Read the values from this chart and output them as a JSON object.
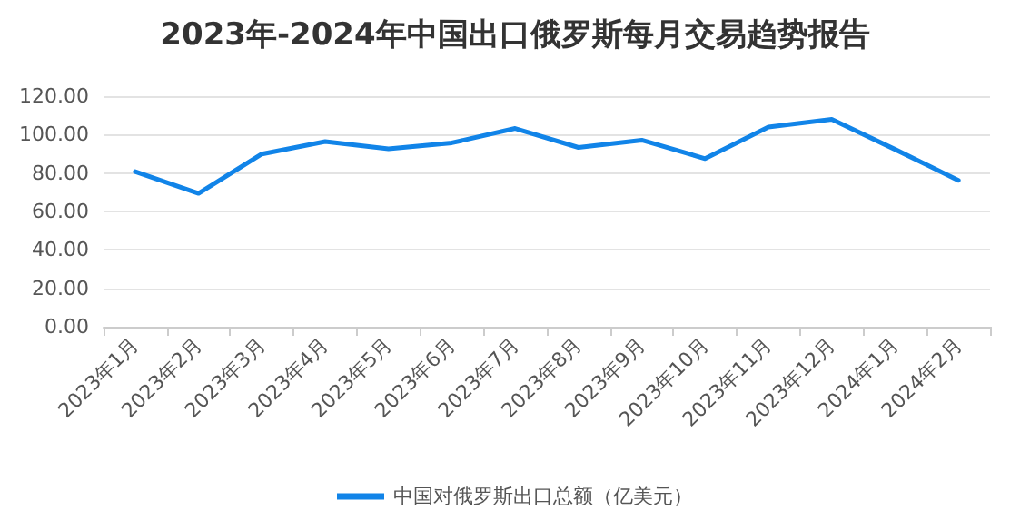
{
  "chart_data": {
    "type": "line",
    "title": "2023年-2024年中国出口俄罗斯每月交易趋势报告",
    "categories": [
      "2023年1月",
      "2023年2月",
      "2023年3月",
      "2023年4月",
      "2023年5月",
      "2023年6月",
      "2023年7月",
      "2023年8月",
      "2023年9月",
      "2023年10月",
      "2023年11月",
      "2023年12月",
      "2024年1月",
      "2024年2月"
    ],
    "series": [
      {
        "name": "中国对俄罗斯出口总额（亿美元）",
        "color": "#1184e8",
        "values": [
          80.7,
          69.4,
          89.9,
          96.4,
          92.6,
          95.7,
          103.2,
          93.3,
          97.1,
          87.5,
          103.9,
          108.0,
          92.3,
          76.2
        ]
      }
    ],
    "ylim": [
      0,
      120
    ],
    "yticks": [
      {
        "value": 0,
        "label": "0.00"
      },
      {
        "value": 20,
        "label": "20.00"
      },
      {
        "value": 40,
        "label": "40.00"
      },
      {
        "value": 60,
        "label": "60.00"
      },
      {
        "value": 80,
        "label": "80.00"
      },
      {
        "value": 100,
        "label": "100.00"
      },
      {
        "value": 120,
        "label": "120.00"
      }
    ],
    "grid": "y",
    "legend": "bottom",
    "marker": "none",
    "line_style": "solid"
  }
}
